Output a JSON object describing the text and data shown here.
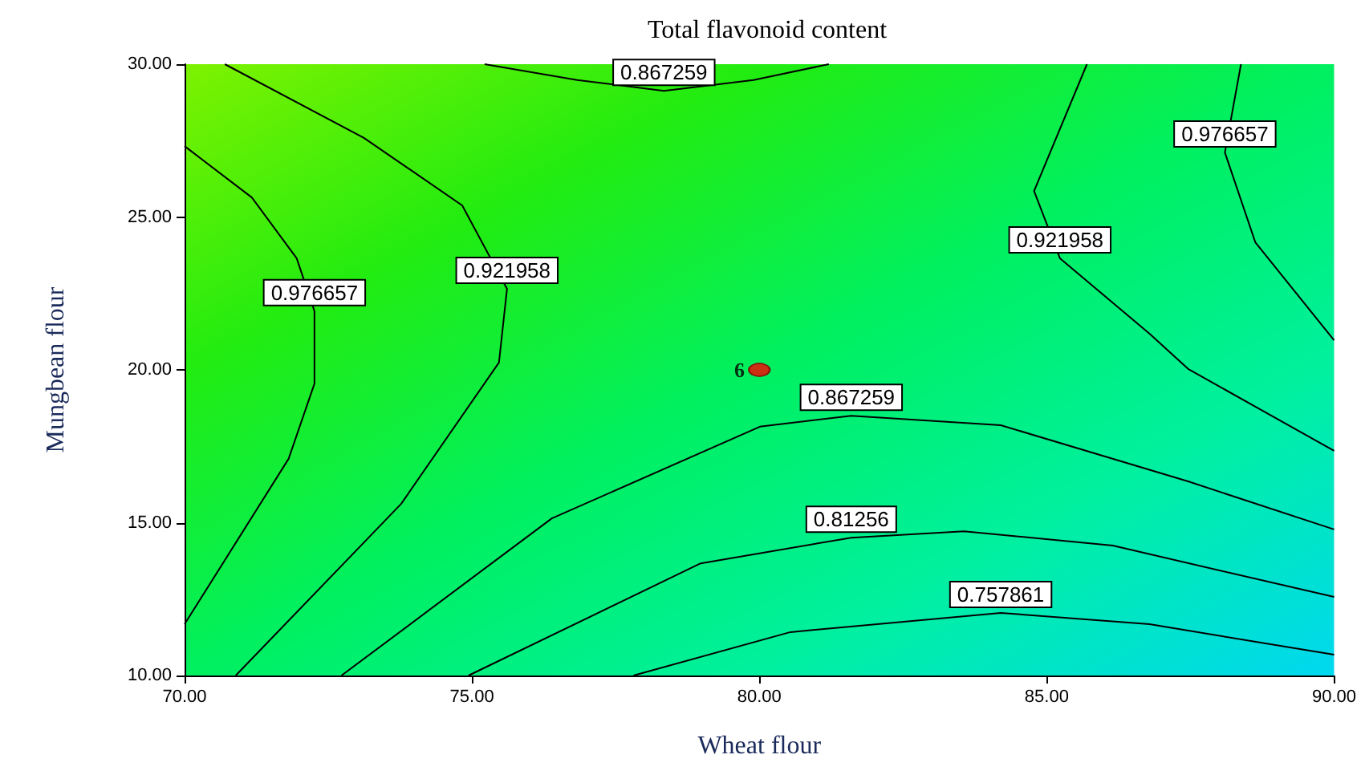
{
  "chart_data": {
    "type": "line",
    "title": "Total flavonoid content",
    "xlabel": "Wheat flour",
    "ylabel": "Mungbean flour",
    "xlim": [
      70,
      90
    ],
    "ylim": [
      10,
      30
    ],
    "xticks": [
      {
        "value": 70,
        "label": "70.00"
      },
      {
        "value": 75,
        "label": "75.00"
      },
      {
        "value": 80,
        "label": "80.00"
      },
      {
        "value": 85,
        "label": "85.00"
      },
      {
        "value": 90,
        "label": "90.00"
      }
    ],
    "yticks": [
      {
        "value": 10,
        "label": "10.00"
      },
      {
        "value": 15,
        "label": "15.00"
      },
      {
        "value": 20,
        "label": "20.00"
      },
      {
        "value": 25,
        "label": "25.00"
      },
      {
        "value": 30,
        "label": "30.00"
      }
    ],
    "grid": false,
    "legend": false,
    "marker": "none",
    "line_style": "solid",
    "series": [
      {
        "name": "0.867259",
        "color": "#000000",
        "x": [
          75.22,
          76.83,
          78.34,
          79.9,
          81.21
        ],
        "values": [
          30,
          29.48,
          29.13,
          29.48,
          30
        ]
      },
      {
        "name": "0.976657",
        "color": "#000000",
        "x": [
          70,
          71.17,
          71.95,
          72.26,
          72.26,
          71.81,
          70
        ],
        "values": [
          27.32,
          25.64,
          23.65,
          21.92,
          19.55,
          17.09,
          11.68
        ]
      },
      {
        "name": "0.921958",
        "color": "#000000",
        "x": [
          70.7,
          73.12,
          74.83,
          75.61,
          75.47,
          73.77,
          70.89
        ],
        "values": [
          30,
          27.59,
          25.38,
          22.65,
          20.24,
          15.62,
          10
        ]
      },
      {
        "name": "0.867259",
        "color": "#000000",
        "x": [
          72.73,
          76.39,
          80.01,
          81.6,
          84.2,
          87.46,
          90
        ],
        "values": [
          10,
          15.14,
          18.14,
          18.5,
          18.19,
          16.35,
          14.78
        ]
      },
      {
        "name": "0.81256",
        "color": "#000000",
        "x": [
          74.94,
          78.98,
          81.6,
          83.56,
          86.15,
          90
        ],
        "values": [
          10,
          13.67,
          14.51,
          14.72,
          14.25,
          12.57
        ]
      },
      {
        "name": "0.757861",
        "color": "#000000",
        "x": [
          77.81,
          80.54,
          84.2,
          86.79,
          90
        ],
        "values": [
          10,
          11.42,
          12.05,
          11.68,
          10.68
        ]
      },
      {
        "name": "0.921958",
        "color": "#000000",
        "x": [
          85.7,
          84.78,
          85.23,
          86.79,
          87.46,
          90
        ],
        "values": [
          30,
          25.85,
          23.65,
          21.18,
          20.03,
          17.35
        ]
      },
      {
        "name": "0.976657",
        "color": "#000000",
        "x": [
          88.38,
          88.1,
          88.63,
          90
        ],
        "values": [
          30,
          27.11,
          24.17,
          20.97
        ]
      },
      {
        "name": "6",
        "type": "scatter",
        "marker": "circle",
        "color": "#ff0000",
        "x": [
          80
        ],
        "values": [
          20
        ]
      }
    ]
  }
}
